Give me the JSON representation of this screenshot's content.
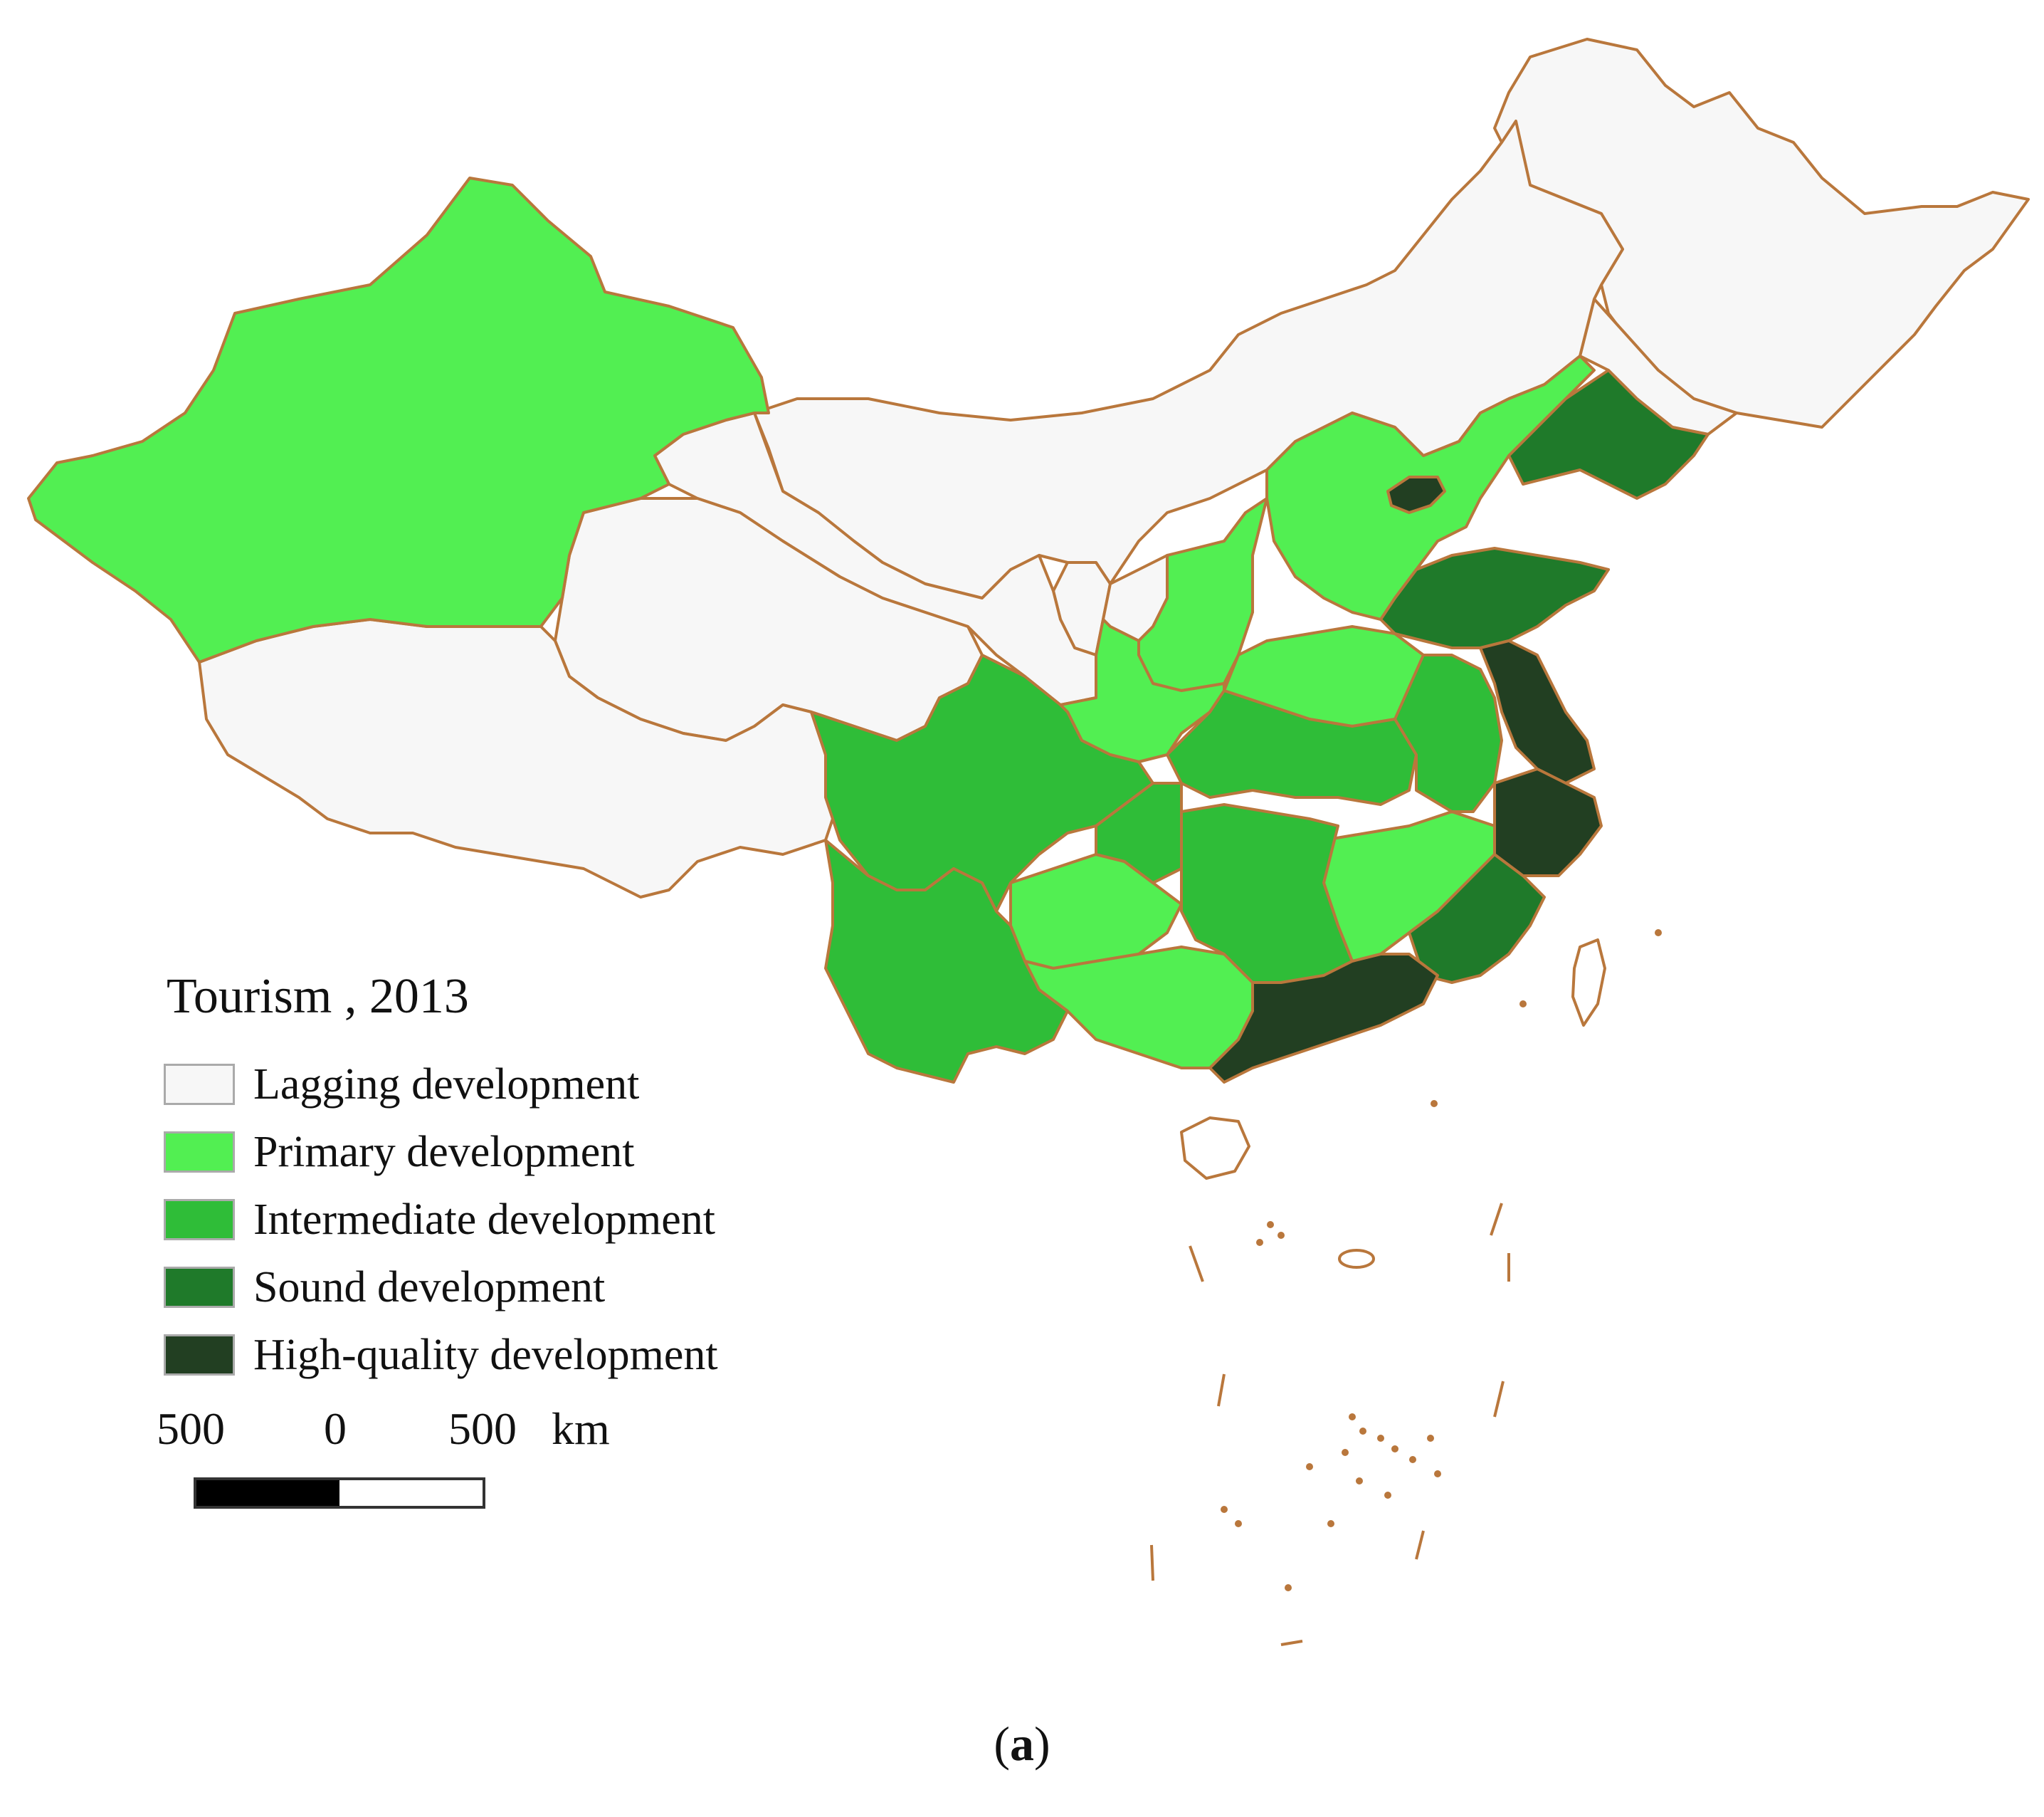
{
  "legend": {
    "title": "Tourism , 2013",
    "classes": [
      {
        "label": "Lagging development",
        "color": "#f7f7f7"
      },
      {
        "label": "Primary development",
        "color": "#52ef52"
      },
      {
        "label": "Intermediate development",
        "color": "#2fbd38"
      },
      {
        "label": "Sound development",
        "color": "#1f7a2a"
      },
      {
        "label": "High-quality development",
        "color": "#223f22"
      }
    ]
  },
  "scale_bar": {
    "left": "500",
    "mid": "0",
    "right": "500",
    "unit": "km"
  },
  "caption": {
    "open": "(",
    "letter": "a",
    "close": ")"
  },
  "colors": {
    "border": "#b9773c",
    "background": "#ffffff"
  }
}
